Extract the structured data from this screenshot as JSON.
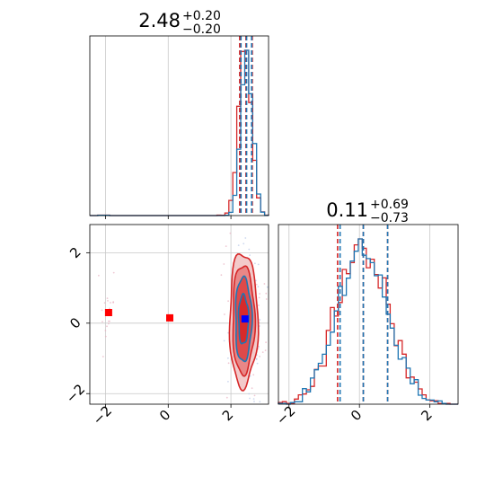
{
  "chart_data": [
    {
      "type": "histogram",
      "panel": "top-left",
      "title": {
        "value": "2.48",
        "plus": "+0.20",
        "minus": "−0.20"
      },
      "xlim": [
        -2.5,
        3.2
      ],
      "grid": true,
      "colors": {
        "series_a": "#d62728",
        "series_b": "#1f77b4"
      },
      "series": [
        {
          "color": "#d62728",
          "peak_x": 2.45,
          "spread": 0.2,
          "quantiles": [
            2.28,
            2.48,
            2.68
          ]
        },
        {
          "color": "#1f77b4",
          "peak_x": 2.5,
          "spread": 0.18,
          "quantiles": [
            2.32,
            2.5,
            2.66
          ]
        }
      ]
    },
    {
      "type": "contour",
      "panel": "bottom-left",
      "xlim": [
        -2.5,
        3.2
      ],
      "ylim": [
        -2.3,
        2.8
      ],
      "x_ticks": [
        "−2",
        "0",
        "2"
      ],
      "y_ticks": [
        "−2",
        "0",
        "2"
      ],
      "x_tick_values": [
        -2,
        0,
        2
      ],
      "y_tick_values": [
        -2,
        0,
        2
      ],
      "grid": true,
      "markers": [
        {
          "shape": "square",
          "color": "#ff0000",
          "x": -1.9,
          "y": 0.3
        },
        {
          "shape": "square",
          "color": "#ff0000",
          "x": 0.05,
          "y": 0.15
        },
        {
          "shape": "square",
          "color": "#0000ff",
          "x": 2.45,
          "y": 0.12
        }
      ],
      "contour_center": [
        2.4,
        0.1
      ],
      "contour_levels": [
        {
          "rx": 0.45,
          "ry": 1.9,
          "fill": "#f2c4c4",
          "stroke": "#d62728"
        },
        {
          "rx": 0.35,
          "ry": 1.55,
          "fill": "#e88080",
          "stroke": "#d62728"
        },
        {
          "rx": 0.26,
          "ry": 1.2,
          "fill": "#dd4444",
          "stroke": "#1f77b4"
        },
        {
          "rx": 0.16,
          "ry": 0.7,
          "fill": "#d62728",
          "stroke": "#1f77b4"
        }
      ]
    },
    {
      "type": "histogram",
      "panel": "bottom-right",
      "title": {
        "value": "0.11",
        "plus": "+0.69",
        "minus": "−0.73"
      },
      "xlim": [
        -2.3,
        2.8
      ],
      "x_ticks": [
        "−2",
        "0",
        "2"
      ],
      "x_tick_values": [
        -2,
        0,
        2
      ],
      "grid": true,
      "series": [
        {
          "color": "#d62728",
          "peak_x": 0.1,
          "spread": 0.72,
          "quantiles": [
            -0.62,
            0.11,
            0.8
          ]
        },
        {
          "color": "#1f77b4",
          "peak_x": 0.1,
          "spread": 0.7,
          "quantiles": [
            -0.55,
            0.11,
            0.8
          ]
        }
      ]
    }
  ]
}
